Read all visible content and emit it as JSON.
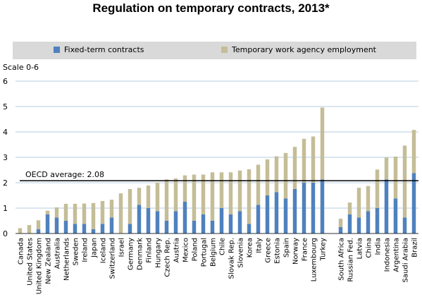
{
  "colors": {
    "fixed_term": "#4f81bd",
    "tempwork": "#c4bd97",
    "grid": "#9bbbd9",
    "reference": "#000000"
  },
  "chart_data": {
    "type": "bar",
    "stacked": true,
    "title": "Regulation on temporary contracts, 2013*",
    "ylabel": "Scale 0-6",
    "ylim": [
      0,
      6
    ],
    "yticks": [
      0,
      1,
      2,
      3,
      4,
      5,
      6
    ],
    "grid": true,
    "legend_position": "top",
    "categories": [
      "Canada",
      "United States",
      "United Kingdom",
      "New Zealand",
      "Australia",
      "Netherlands",
      "Sweden",
      "Ireland",
      "Japan",
      "Iceland",
      "Switzerland",
      "Israel",
      "Germany",
      "Denmark",
      "Finland",
      "Hungary",
      "Czech Rep.",
      "Austria",
      "Mexico",
      "Poland",
      "Portugal",
      "Belgium",
      "Chile",
      "Slovak Rep.",
      "Slovenia",
      "Korea",
      "Italy",
      "Greece",
      "Estonia",
      "Spain",
      "Norway",
      "France",
      "Luxembourg",
      "Turkey",
      "",
      "South Africa",
      "Russian Fed.",
      "Latvia",
      "China",
      "India",
      "Indonesia",
      "Argentina",
      "Saudi Arabia",
      "Brazil"
    ],
    "series": [
      {
        "name": "Fixed-term contracts",
        "values": [
          0,
          0,
          0.17,
          0.75,
          0.63,
          0.5,
          0.38,
          0.38,
          0.17,
          0.38,
          0.63,
          0,
          0.38,
          1.13,
          1,
          0.88,
          0.5,
          0.88,
          1.25,
          0.5,
          0.75,
          0.5,
          1,
          0.75,
          0.88,
          0.38,
          1.13,
          1.5,
          1.63,
          1.38,
          1.75,
          2,
          2,
          2.13,
          0,
          0.25,
          0.75,
          0.63,
          0.88,
          1,
          2.13,
          1.38,
          0.63,
          2.38
        ]
      },
      {
        "name": "Temporary work agency employment",
        "values": [
          0.21,
          0.33,
          0.35,
          0.15,
          0.4,
          0.67,
          0.79,
          0.8,
          1.03,
          0.9,
          0.7,
          1.58,
          1.37,
          0.67,
          0.89,
          1.12,
          1.63,
          1.29,
          1.04,
          1.82,
          1.57,
          1.91,
          1.41,
          1.66,
          1.6,
          2.15,
          1.58,
          1.42,
          1.41,
          1.79,
          1.66,
          1.73,
          1.82,
          2.83,
          0,
          0.33,
          0.47,
          1.17,
          0.99,
          1.52,
          0.86,
          1.65,
          2.83,
          1.7
        ]
      }
    ],
    "reference_line": {
      "value": 2.08,
      "label": "OECD average: 2.08"
    }
  }
}
